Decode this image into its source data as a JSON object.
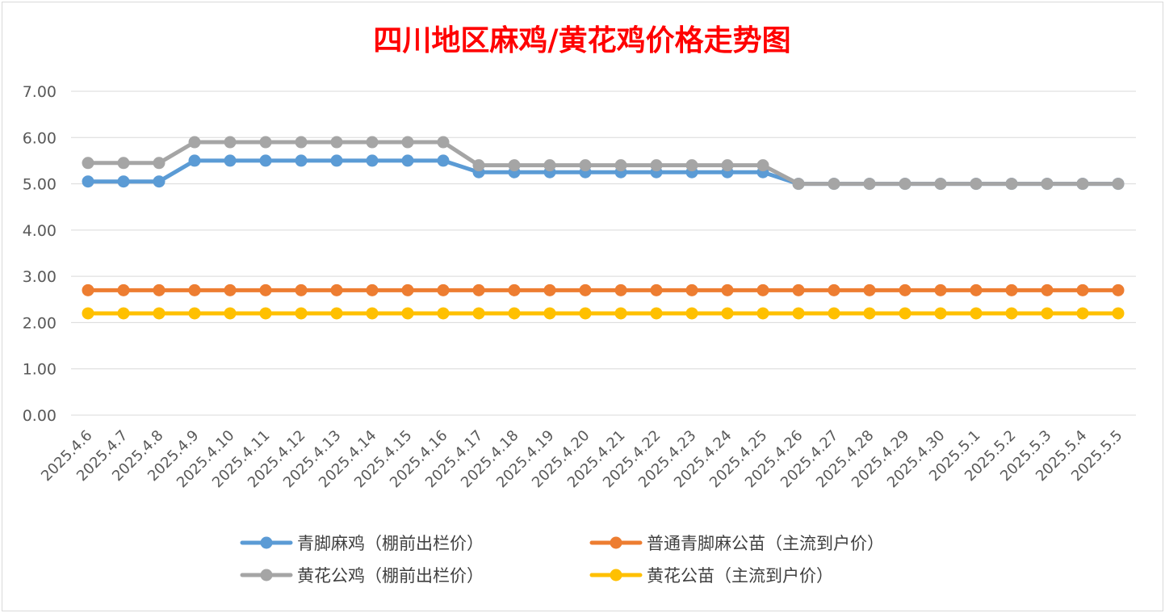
{
  "chart_data": {
    "type": "line",
    "title": "四川地区麻鸡/黄花鸡价格走势图",
    "xlabel": "",
    "ylabel": "",
    "ylim": [
      0,
      7
    ],
    "yticks": [
      "0.00",
      "1.00",
      "2.00",
      "3.00",
      "4.00",
      "5.00",
      "6.00",
      "7.00"
    ],
    "grid": true,
    "legend_position": "bottom",
    "categories": [
      "2025.4.6",
      "2025.4.7",
      "2025.4.8",
      "2025.4.9",
      "2025.4.10",
      "2025.4.11",
      "2025.4.12",
      "2025.4.13",
      "2025.4.14",
      "2025.4.15",
      "2025.4.16",
      "2025.4.17",
      "2025.4.18",
      "2025.4.19",
      "2025.4.20",
      "2025.4.21",
      "2025.4.22",
      "2025.4.23",
      "2025.4.24",
      "2025.4.25",
      "2025.4.26",
      "2025.4.27",
      "2025.4.28",
      "2025.4.29",
      "2025.4.30",
      "2025.5.1",
      "2025.5.2",
      "2025.5.3",
      "2025.5.4",
      "2025.5.5"
    ],
    "series": [
      {
        "name": "青脚麻鸡（棚前出栏价）",
        "color": "#5b9bd5",
        "values": [
          5.05,
          5.05,
          5.05,
          5.5,
          5.5,
          5.5,
          5.5,
          5.5,
          5.5,
          5.5,
          5.5,
          5.25,
          5.25,
          5.25,
          5.25,
          5.25,
          5.25,
          5.25,
          5.25,
          5.25,
          5.0,
          5.0,
          5.0,
          5.0,
          5.0,
          5.0,
          5.0,
          5.0,
          5.0,
          5.0
        ]
      },
      {
        "name": "普通青脚麻公苗（主流到户价）",
        "color": "#ed7d31",
        "values": [
          2.7,
          2.7,
          2.7,
          2.7,
          2.7,
          2.7,
          2.7,
          2.7,
          2.7,
          2.7,
          2.7,
          2.7,
          2.7,
          2.7,
          2.7,
          2.7,
          2.7,
          2.7,
          2.7,
          2.7,
          2.7,
          2.7,
          2.7,
          2.7,
          2.7,
          2.7,
          2.7,
          2.7,
          2.7,
          2.7
        ]
      },
      {
        "name": "黄花公鸡（棚前出栏价）",
        "color": "#a5a5a5",
        "values": [
          5.45,
          5.45,
          5.45,
          5.9,
          5.9,
          5.9,
          5.9,
          5.9,
          5.9,
          5.9,
          5.9,
          5.4,
          5.4,
          5.4,
          5.4,
          5.4,
          5.4,
          5.4,
          5.4,
          5.4,
          5.0,
          5.0,
          5.0,
          5.0,
          5.0,
          5.0,
          5.0,
          5.0,
          5.0,
          5.0
        ]
      },
      {
        "name": "黄花公苗（主流到户价）",
        "color": "#ffc000",
        "values": [
          2.2,
          2.2,
          2.2,
          2.2,
          2.2,
          2.2,
          2.2,
          2.2,
          2.2,
          2.2,
          2.2,
          2.2,
          2.2,
          2.2,
          2.2,
          2.2,
          2.2,
          2.2,
          2.2,
          2.2,
          2.2,
          2.2,
          2.2,
          2.2,
          2.2,
          2.2,
          2.2,
          2.2,
          2.2,
          2.2
        ]
      }
    ],
    "draw_order": [
      1,
      3,
      0,
      2
    ]
  }
}
